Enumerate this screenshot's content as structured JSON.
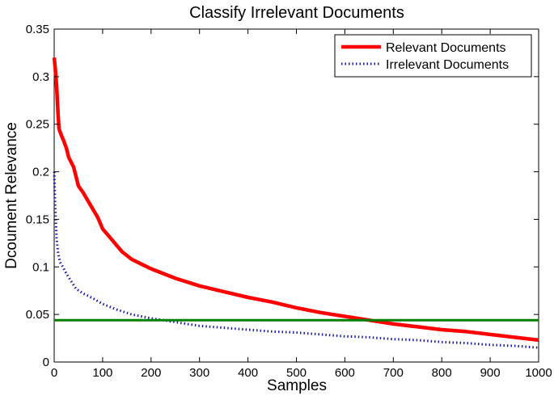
{
  "chart_data": {
    "type": "line",
    "title": "Classify Irrelevant Documents",
    "xlabel": "Samples",
    "ylabel": "Dcoument Relevance",
    "xlim": [
      0,
      1000
    ],
    "ylim": [
      0,
      0.35
    ],
    "xticks": [
      0,
      100,
      200,
      300,
      400,
      500,
      600,
      700,
      800,
      900,
      1000
    ],
    "yticks": [
      0,
      0.05,
      0.1,
      0.15,
      0.2,
      0.25,
      0.3,
      0.35
    ],
    "xtick_labels": [
      "0",
      "100",
      "200",
      "300",
      "400",
      "500",
      "600",
      "700",
      "800",
      "900",
      "1000"
    ],
    "ytick_labels": [
      "0",
      "0.05",
      "0.1",
      "0.15",
      "0.2",
      "0.25",
      "0.3",
      "0.35"
    ],
    "legend_position": "top-right",
    "grid": false,
    "series": [
      {
        "name": "Relevant Documents",
        "color": "#ff0000",
        "style": "solid",
        "x": [
          0,
          2,
          5,
          8,
          10,
          15,
          20,
          25,
          30,
          40,
          50,
          60,
          75,
          90,
          100,
          120,
          140,
          160,
          180,
          200,
          250,
          300,
          350,
          400,
          450,
          500,
          550,
          600,
          650,
          700,
          750,
          800,
          850,
          900,
          950,
          1000
        ],
        "y": [
          0.32,
          0.31,
          0.29,
          0.26,
          0.245,
          0.238,
          0.232,
          0.225,
          0.215,
          0.205,
          0.185,
          0.178,
          0.165,
          0.152,
          0.14,
          0.128,
          0.116,
          0.108,
          0.103,
          0.098,
          0.088,
          0.08,
          0.074,
          0.068,
          0.063,
          0.057,
          0.052,
          0.048,
          0.044,
          0.04,
          0.037,
          0.034,
          0.032,
          0.029,
          0.026,
          0.023
        ]
      },
      {
        "name": "Irrelevant Documents",
        "color": "#1a1aa8",
        "style": "dotted",
        "x": [
          0,
          2,
          5,
          8,
          12,
          18,
          25,
          35,
          45,
          60,
          80,
          100,
          130,
          160,
          200,
          250,
          300,
          350,
          400,
          450,
          500,
          550,
          600,
          650,
          700,
          750,
          800,
          850,
          900,
          950,
          1000
        ],
        "y": [
          0.2,
          0.165,
          0.13,
          0.115,
          0.105,
          0.1,
          0.093,
          0.085,
          0.077,
          0.072,
          0.067,
          0.061,
          0.055,
          0.05,
          0.046,
          0.042,
          0.038,
          0.036,
          0.034,
          0.032,
          0.031,
          0.029,
          0.027,
          0.026,
          0.024,
          0.023,
          0.021,
          0.02,
          0.018,
          0.017,
          0.015
        ]
      },
      {
        "name": "",
        "color": "#008000",
        "style": "solid",
        "x": [
          0,
          1000
        ],
        "y": [
          0.044,
          0.044
        ]
      }
    ]
  }
}
